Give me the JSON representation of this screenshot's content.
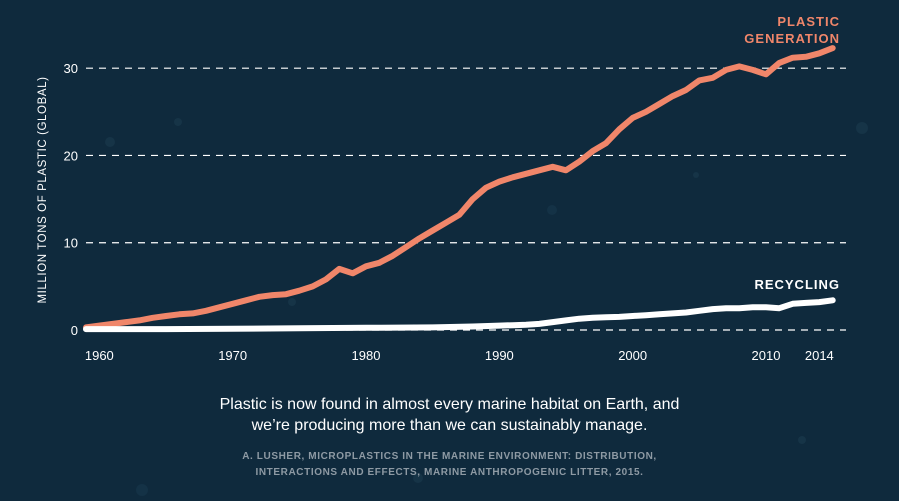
{
  "chart_data": {
    "type": "line",
    "ylabel": "MILLION TONS OF PLASTIC (GLOBAL)",
    "xlabel": "",
    "title": "",
    "xlim": [
      1959,
      2016
    ],
    "ylim": [
      0,
      33
    ],
    "x_ticks": [
      1960,
      1970,
      1980,
      1990,
      2000,
      2010,
      2014
    ],
    "x_tick_labels": [
      "1960",
      "1970",
      "1980",
      "1990",
      "2000",
      "2010",
      "2014"
    ],
    "y_ticks": [
      0,
      10,
      20,
      30
    ],
    "y_tick_labels": [
      "0",
      "10",
      "20",
      "30"
    ],
    "grid": "horizontal dashed",
    "series": [
      {
        "name": "PLASTIC GENERATION",
        "label_lines": [
          "PLASTIC",
          "GENERATION"
        ],
        "color": "#f0866a",
        "x": [
          1959,
          1960,
          1961,
          1962,
          1963,
          1964,
          1965,
          1966,
          1967,
          1968,
          1969,
          1970,
          1971,
          1972,
          1973,
          1974,
          1975,
          1976,
          1977,
          1978,
          1979,
          1980,
          1981,
          1982,
          1983,
          1984,
          1985,
          1986,
          1987,
          1988,
          1989,
          1990,
          1991,
          1992,
          1993,
          1994,
          1995,
          1996,
          1997,
          1998,
          1999,
          2000,
          2001,
          2002,
          2003,
          2004,
          2005,
          2006,
          2007,
          2008,
          2009,
          2010,
          2011,
          2012,
          2013,
          2014,
          2015
        ],
        "values": [
          0.3,
          0.5,
          0.7,
          0.9,
          1.1,
          1.4,
          1.6,
          1.8,
          1.9,
          2.2,
          2.6,
          3.0,
          3.4,
          3.8,
          4.0,
          4.1,
          4.5,
          5.0,
          5.8,
          7.0,
          6.5,
          7.3,
          7.7,
          8.5,
          9.5,
          10.5,
          11.4,
          12.3,
          13.2,
          15.0,
          16.3,
          17.0,
          17.5,
          17.9,
          18.3,
          18.7,
          18.3,
          19.3,
          20.5,
          21.4,
          23.0,
          24.3,
          25.0,
          25.9,
          26.8,
          27.5,
          28.6,
          28.9,
          29.8,
          30.2,
          29.8,
          29.3,
          30.6,
          31.2,
          31.3,
          31.7,
          32.3
        ]
      },
      {
        "name": "RECYCLING",
        "label_lines": [
          "RECYCLING"
        ],
        "color": "#ffffff",
        "x": [
          1959,
          1962,
          1965,
          1970,
          1975,
          1980,
          1985,
          1988,
          1990,
          1991,
          1992,
          1993,
          1994,
          1995,
          1996,
          1997,
          1998,
          1999,
          2000,
          2001,
          2002,
          2003,
          2004,
          2005,
          2006,
          2007,
          2008,
          2009,
          2010,
          2011,
          2012,
          2013,
          2014,
          2015
        ],
        "values": [
          0.1,
          0.1,
          0.1,
          0.15,
          0.2,
          0.25,
          0.3,
          0.4,
          0.5,
          0.55,
          0.6,
          0.7,
          0.9,
          1.1,
          1.3,
          1.4,
          1.45,
          1.5,
          1.6,
          1.7,
          1.8,
          1.9,
          2.0,
          2.2,
          2.4,
          2.5,
          2.5,
          2.6,
          2.6,
          2.5,
          3.0,
          3.1,
          3.2,
          3.4
        ]
      }
    ]
  },
  "caption": {
    "line1": "Plastic is now found in almost every marine habitat on Earth, and",
    "line2": "we’re producing more than we can sustainably manage."
  },
  "source": {
    "line1": "A. LUSHER, MICROPLASTICS IN THE MARINE ENVIRONMENT: DISTRIBUTION,",
    "line2": "INTERACTIONS AND EFFECTS, MARINE ANTHROPOGENIC LITTER, 2015."
  },
  "colors": {
    "background": "#0f2a3d",
    "axis": "#ffffff",
    "source_text": "#8e9aa4"
  }
}
